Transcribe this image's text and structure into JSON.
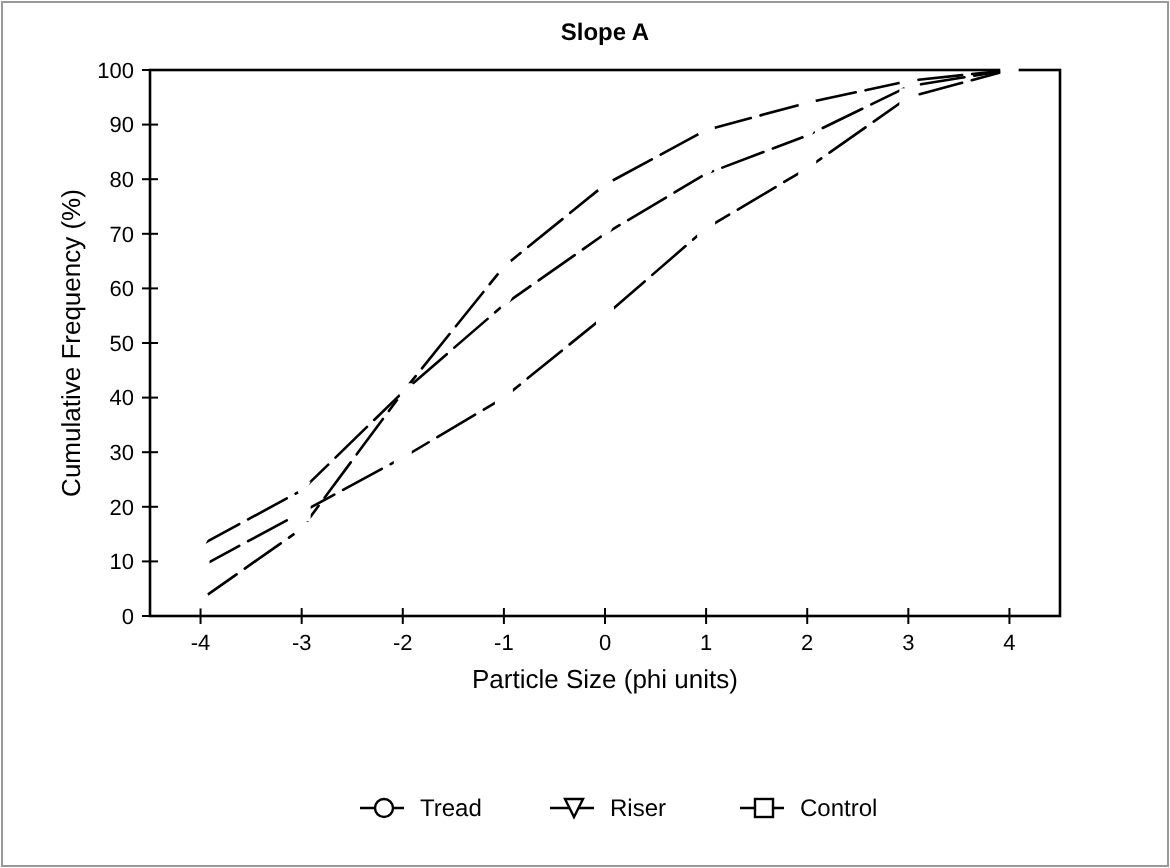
{
  "chart_data": {
    "type": "line",
    "title": "Slope A",
    "xlabel": "Particle Size (phi units)",
    "ylabel": "Cumulative Frequency (%)",
    "x": [
      -4,
      -3,
      -2,
      -1,
      0,
      1,
      2,
      3,
      4
    ],
    "xlim": [
      -4.5,
      4.5
    ],
    "xticks": [
      -4,
      -3,
      -2,
      -1,
      0,
      1,
      2,
      3,
      4
    ],
    "ylim": [
      0,
      100
    ],
    "yticks": [
      0,
      10,
      20,
      30,
      40,
      50,
      60,
      70,
      80,
      90,
      100
    ],
    "series": [
      {
        "name": "Tread",
        "color": "#000000",
        "marker": "circle",
        "values": [
          3,
          16,
          41,
          64,
          79,
          89,
          94,
          98,
          100
        ]
      },
      {
        "name": "Riser",
        "color": "#000000",
        "marker": "triangle",
        "values": [
          13,
          23,
          41,
          57,
          70,
          81,
          88,
          97,
          100
        ]
      },
      {
        "name": "Control",
        "color": "#000000",
        "marker": "square",
        "values": [
          9,
          19,
          29,
          40,
          55,
          71,
          82,
          95,
          100
        ]
      }
    ],
    "line_style": "dashed",
    "legend": "bottom",
    "grid": false
  }
}
